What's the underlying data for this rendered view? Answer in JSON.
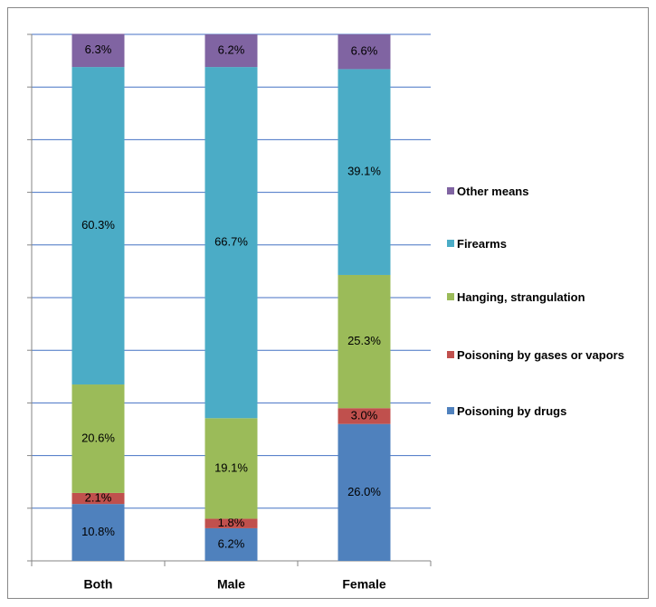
{
  "chart_data": {
    "type": "stacked_bar",
    "categories": [
      "Both",
      "Male",
      "Female"
    ],
    "ylim": [
      0,
      100
    ],
    "yticks": [
      0,
      10,
      20,
      30,
      40,
      50,
      60,
      70,
      80,
      90,
      100
    ],
    "grid": true,
    "series": [
      {
        "name": "Poisoning by drugs",
        "color": "#4F81BD",
        "values": [
          10.8,
          6.2,
          26.0
        ],
        "value_labels": [
          "10.8%",
          "6.2%",
          "26.0%"
        ]
      },
      {
        "name": "Poisoning by gases or vapors",
        "color": "#C0504D",
        "values": [
          2.1,
          1.8,
          3.0
        ],
        "value_labels": [
          "2.1%",
          "1.8%",
          "3.0%"
        ]
      },
      {
        "name": "Hanging, strangulation",
        "color": "#9BBB59",
        "values": [
          20.6,
          19.1,
          25.3
        ],
        "value_labels": [
          "20.6%",
          "19.1%",
          "25.3%"
        ]
      },
      {
        "name": "Firearms",
        "color": "#4BACC6",
        "values": [
          60.3,
          66.7,
          39.1
        ],
        "value_labels": [
          "60.3%",
          "66.7%",
          "39.1%"
        ]
      },
      {
        "name": "Other means",
        "color": "#8064A2",
        "values": [
          6.3,
          6.2,
          6.6
        ],
        "value_labels": [
          "6.3%",
          "6.2%",
          "6.6%"
        ]
      }
    ]
  }
}
